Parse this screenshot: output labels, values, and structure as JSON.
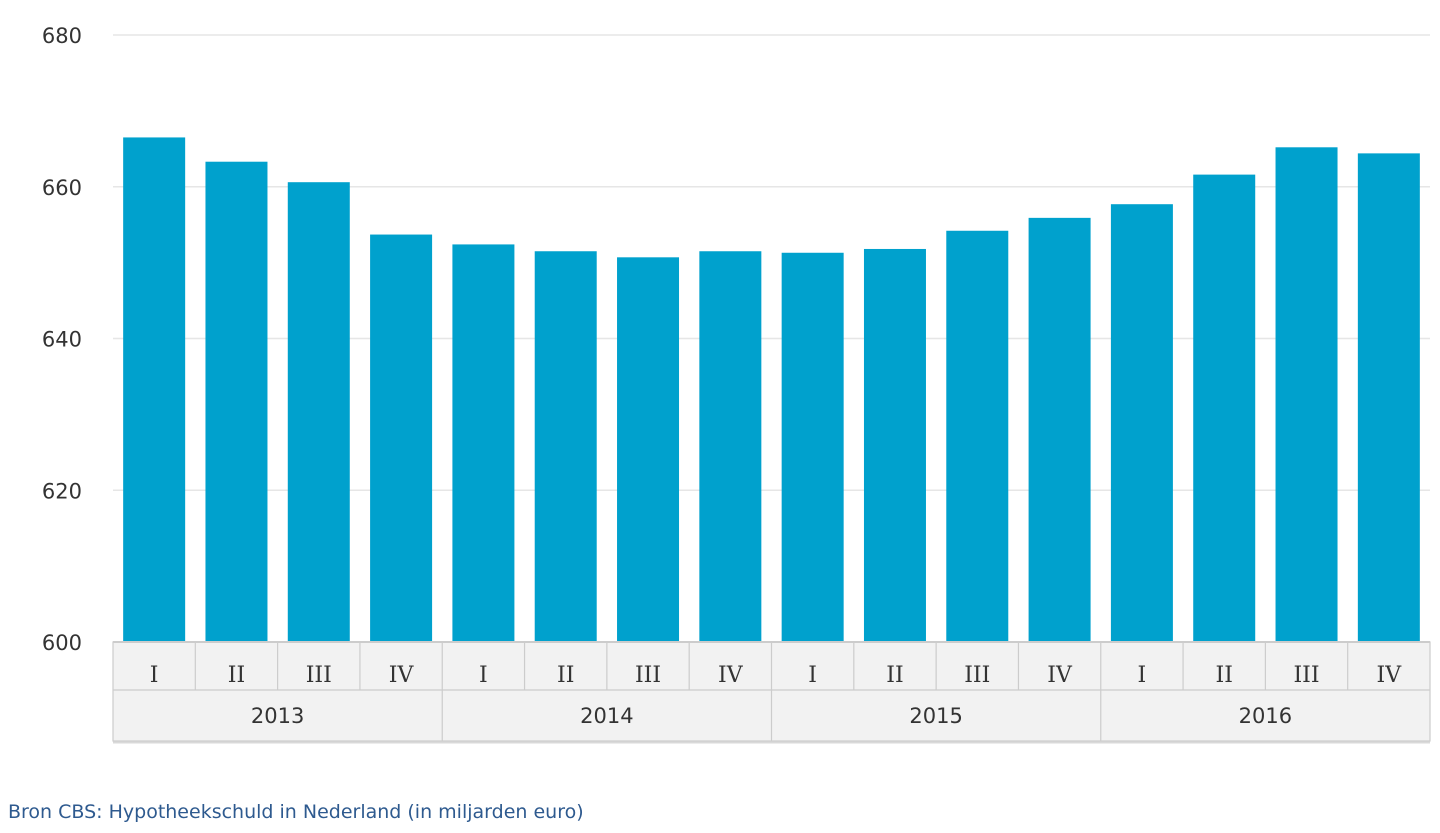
{
  "chart_data": {
    "type": "bar",
    "title": "",
    "xlabel": "",
    "ylabel": "",
    "ylim": [
      600,
      680
    ],
    "yticks": [
      600,
      620,
      640,
      660,
      680
    ],
    "grid": true,
    "color": "#00a1cd",
    "quarters": [
      "I",
      "II",
      "III",
      "IV"
    ],
    "years": [
      "2013",
      "2014",
      "2015",
      "2016"
    ],
    "categories": [
      "2013 I",
      "2013 II",
      "2013 III",
      "2013 IV",
      "2014 I",
      "2014 II",
      "2014 III",
      "2014 IV",
      "2015 I",
      "2015 II",
      "2015 III",
      "2015 IV",
      "2016 I",
      "2016 II",
      "2016 III",
      "2016 IV"
    ],
    "values": [
      666.5,
      663.3,
      660.6,
      653.7,
      652.4,
      651.5,
      650.7,
      651.5,
      651.3,
      651.8,
      654.2,
      655.9,
      657.7,
      661.6,
      665.2,
      664.4
    ]
  },
  "source_text": "Bron CBS: Hypotheekschuld in Nederland (in miljarden euro)"
}
